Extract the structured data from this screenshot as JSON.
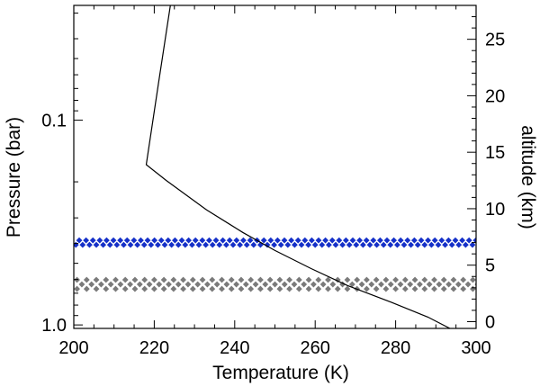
{
  "chart_data": {
    "type": "line",
    "xlabel": "Temperature (K)",
    "ylabel_left": "Pressure (bar)",
    "ylabel_right": "altitude (km)",
    "xlim": [
      200,
      300
    ],
    "x_ticks": [
      200,
      220,
      240,
      260,
      280,
      300
    ],
    "x_tick_labels": [
      "200",
      "220",
      "240",
      "260",
      "280",
      "300"
    ],
    "left_axis": {
      "scale": "log",
      "reversed": true,
      "ylim": [
        0.0275,
        1.04
      ],
      "major_ticks": [
        0.1,
        1.0
      ],
      "major_tick_labels": [
        "0.1",
        "1.0"
      ],
      "minor_ticks": [
        0.03,
        0.04,
        0.05,
        0.06,
        0.07,
        0.08,
        0.09,
        0.2,
        0.3,
        0.4,
        0.5,
        0.6,
        0.7,
        0.8,
        0.9
      ]
    },
    "right_axis": {
      "scale": "linear",
      "ylim": [
        -0.6,
        28
      ],
      "major_ticks": [
        0,
        5,
        10,
        15,
        20,
        25
      ],
      "major_tick_labels": [
        "0",
        "5",
        "10",
        "15",
        "20",
        "25"
      ],
      "minor_ticks": [
        1,
        2,
        3,
        4,
        6,
        7,
        8,
        9,
        11,
        12,
        13,
        14,
        16,
        17,
        18,
        19,
        21,
        22,
        23,
        24,
        26,
        27
      ]
    },
    "series": [
      {
        "kind": "temperature-profile",
        "axis": "right",
        "color": "#000000",
        "points": [
          [
            293.5,
            -0.6
          ],
          [
            288,
            0.4
          ],
          [
            279,
            1.7
          ],
          [
            268,
            3.2
          ],
          [
            259,
            4.7
          ],
          [
            250,
            6.3
          ],
          [
            242,
            7.9
          ],
          [
            233,
            9.9
          ],
          [
            223,
            12.5
          ],
          [
            218,
            13.9
          ],
          [
            221,
            21.0
          ],
          [
            224,
            28.0
          ]
        ]
      },
      {
        "kind": "diamond-band",
        "axis": "right",
        "color": "#1530c8",
        "rows": [
          6.8,
          7.2
        ],
        "x_start": 200.5,
        "x_step": 1.7
      },
      {
        "kind": "diamond-band",
        "axis": "right",
        "color": "#7a7a7a",
        "rows": [
          2.9,
          3.3,
          3.7
        ],
        "x_start": 200.8,
        "x_step": 2.4
      }
    ]
  }
}
